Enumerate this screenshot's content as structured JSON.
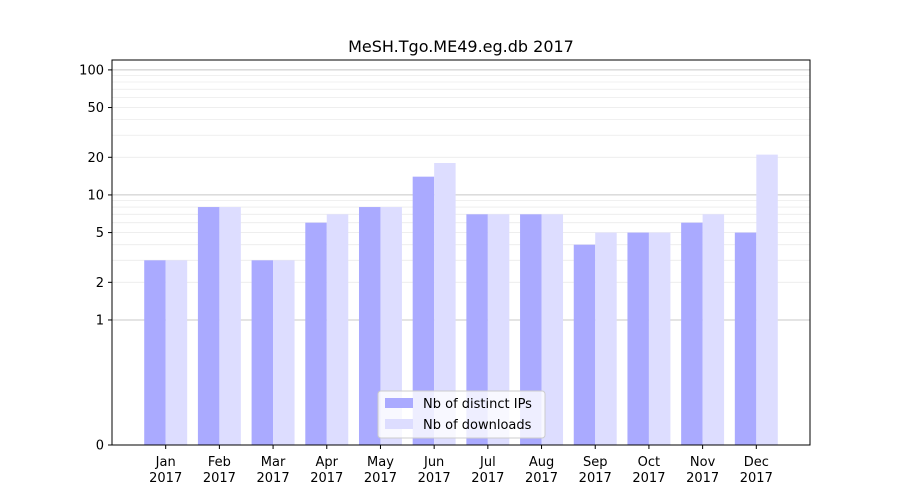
{
  "chart_data": {
    "type": "bar",
    "title": "MeSH.Tgo.ME49.eg.db 2017",
    "xlabel": "",
    "ylabel": "",
    "yscale": "symlog",
    "ylim": [
      0,
      120
    ],
    "yticks": [
      0,
      1,
      2,
      5,
      10,
      20,
      50,
      100
    ],
    "grid": true,
    "legend_position": "bottom-center",
    "categories": [
      [
        "Jan",
        "2017"
      ],
      [
        "Feb",
        "2017"
      ],
      [
        "Mar",
        "2017"
      ],
      [
        "Apr",
        "2017"
      ],
      [
        "May",
        "2017"
      ],
      [
        "Jun",
        "2017"
      ],
      [
        "Jul",
        "2017"
      ],
      [
        "Aug",
        "2017"
      ],
      [
        "Sep",
        "2017"
      ],
      [
        "Oct",
        "2017"
      ],
      [
        "Nov",
        "2017"
      ],
      [
        "Dec",
        "2017"
      ]
    ],
    "series": [
      {
        "name": "Nb of distinct IPs",
        "color": "#aaaaff",
        "values": [
          3,
          8,
          3,
          6,
          8,
          14,
          7,
          7,
          4,
          5,
          6,
          5
        ]
      },
      {
        "name": "Nb of downloads",
        "color": "#ddddff",
        "values": [
          3,
          8,
          3,
          7,
          8,
          18,
          7,
          7,
          5,
          5,
          7,
          21
        ]
      }
    ]
  }
}
